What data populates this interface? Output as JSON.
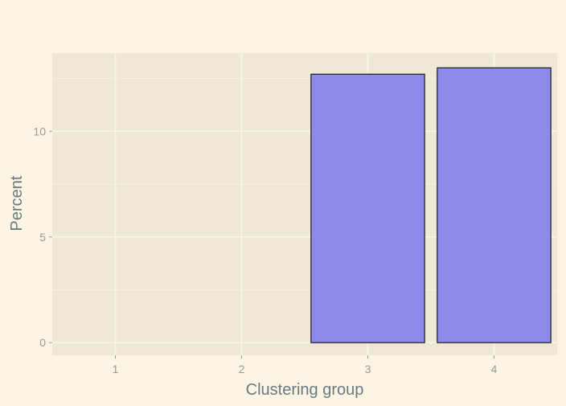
{
  "chart_data": {
    "type": "bar",
    "categories": [
      "1",
      "2",
      "3",
      "4"
    ],
    "values": [
      0,
      0,
      12.7,
      13.0
    ],
    "xlabel": "Clustering group",
    "ylabel": "Percent",
    "ylim": [
      -0.6,
      13.7
    ],
    "yticks": [
      0,
      5,
      10
    ],
    "grid": true,
    "legend": "none",
    "colors": {
      "page_background": "#fcf5e4",
      "panel_background": "#efe8d7",
      "grid_line": "#fbf6ea",
      "bar_fill": "#8f8aea",
      "bar_outline": "#1a1a1a",
      "tick_label": "#9a9a9a",
      "axis_title": "#6b7a80"
    }
  }
}
